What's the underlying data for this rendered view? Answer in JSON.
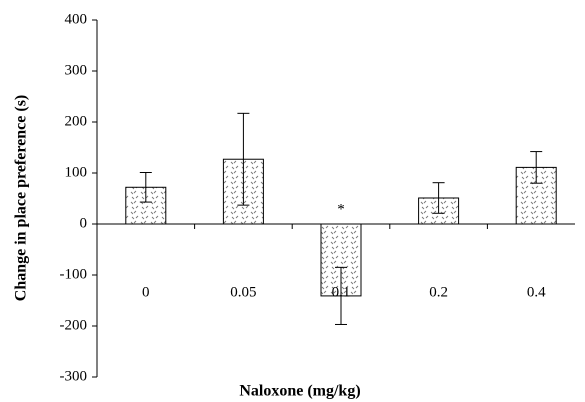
{
  "chart_data": {
    "type": "bar",
    "x_label": "Naloxone (mg/kg)",
    "y_label": "Change in place preference (s)",
    "categories": [
      "0",
      "0.05",
      "0.1",
      "0.2",
      "0.4"
    ],
    "values": [
      72,
      127,
      -141,
      51,
      111
    ],
    "errors": [
      29,
      90,
      56,
      30,
      31
    ],
    "color": "#888888",
    "ylim": [
      -300,
      400
    ],
    "yticks": [
      -300,
      -200,
      -100,
      0,
      100,
      200,
      300,
      400
    ],
    "annotation": {
      "text": "*",
      "category": "0.1"
    }
  }
}
